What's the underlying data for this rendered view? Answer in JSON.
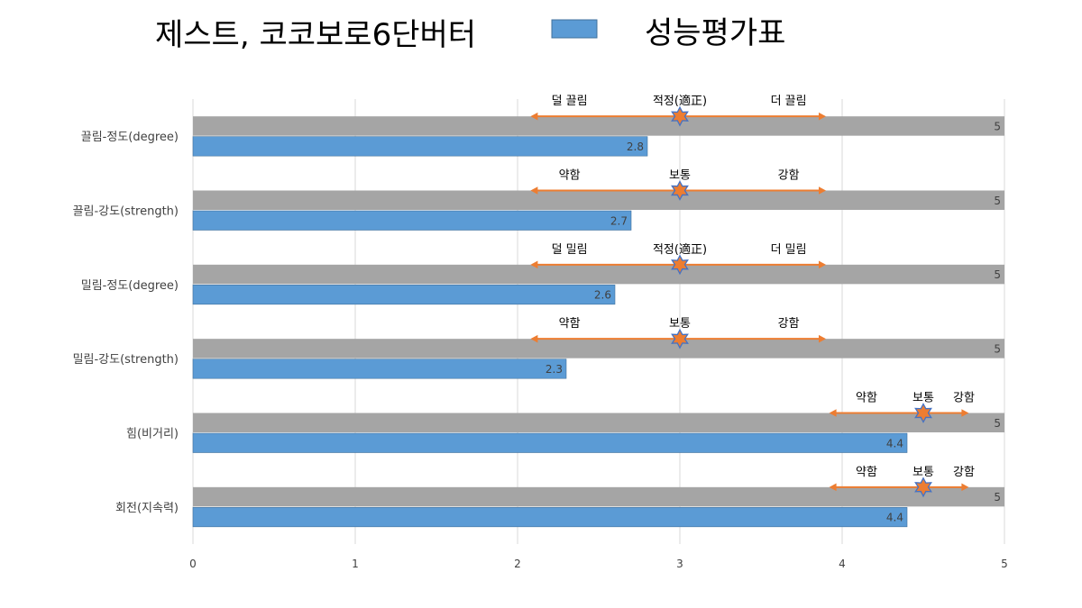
{
  "chart_data": {
    "type": "bar",
    "orientation": "horizontal",
    "title": "제스트, 코코보로6단버터",
    "categories": [
      "끌림-정도(degree)",
      "끌림-강도(strength)",
      "밀림-정도(degree)",
      "밀림-강도(strength)",
      "힘(비거리)",
      "회전(지속력)"
    ],
    "series": [
      {
        "name": "",
        "color": "#a5a5a5",
        "values": [
          5,
          5,
          5,
          5,
          5,
          5
        ]
      },
      {
        "name": "성능평가표",
        "color": "#5b9bd5",
        "values": [
          2.8,
          2.7,
          2.6,
          2.3,
          4.4,
          4.4
        ]
      }
    ],
    "xlim": [
      0,
      5
    ],
    "xticks": [
      "0",
      "1",
      "2",
      "3",
      "4",
      "5"
    ],
    "grid": true,
    "legend": {
      "position": "top-right",
      "entries": [
        "성능평가표"
      ]
    },
    "annotations": [
      {
        "left": "덜 끌림",
        "center": "적정(適正)",
        "right": "더 끌림",
        "marker": 3,
        "arrow_from": 2.08,
        "arrow_to": 3.9
      },
      {
        "left": "약함",
        "center": "보통",
        "right": "강함",
        "marker": 3,
        "arrow_from": 2.08,
        "arrow_to": 3.9
      },
      {
        "left": "덜 밀림",
        "center": "적정(適正)",
        "right": "더 밀림",
        "marker": 3,
        "arrow_from": 2.08,
        "arrow_to": 3.9
      },
      {
        "left": "약함",
        "center": "보통",
        "right": "강함",
        "marker": 3,
        "arrow_from": 2.08,
        "arrow_to": 3.9
      },
      {
        "left": "약함",
        "center": "보통",
        "right": "강함",
        "marker": 4.5,
        "arrow_from": 3.92,
        "arrow_to": 4.78
      },
      {
        "left": "약함",
        "center": "보통",
        "right": "강함",
        "marker": 4.5,
        "arrow_from": 3.92,
        "arrow_to": 4.78
      }
    ],
    "annotation_colors": {
      "arrow": "#ed7d31",
      "star_fill": "#ed7d31",
      "star_stroke": "#4472c4"
    }
  }
}
